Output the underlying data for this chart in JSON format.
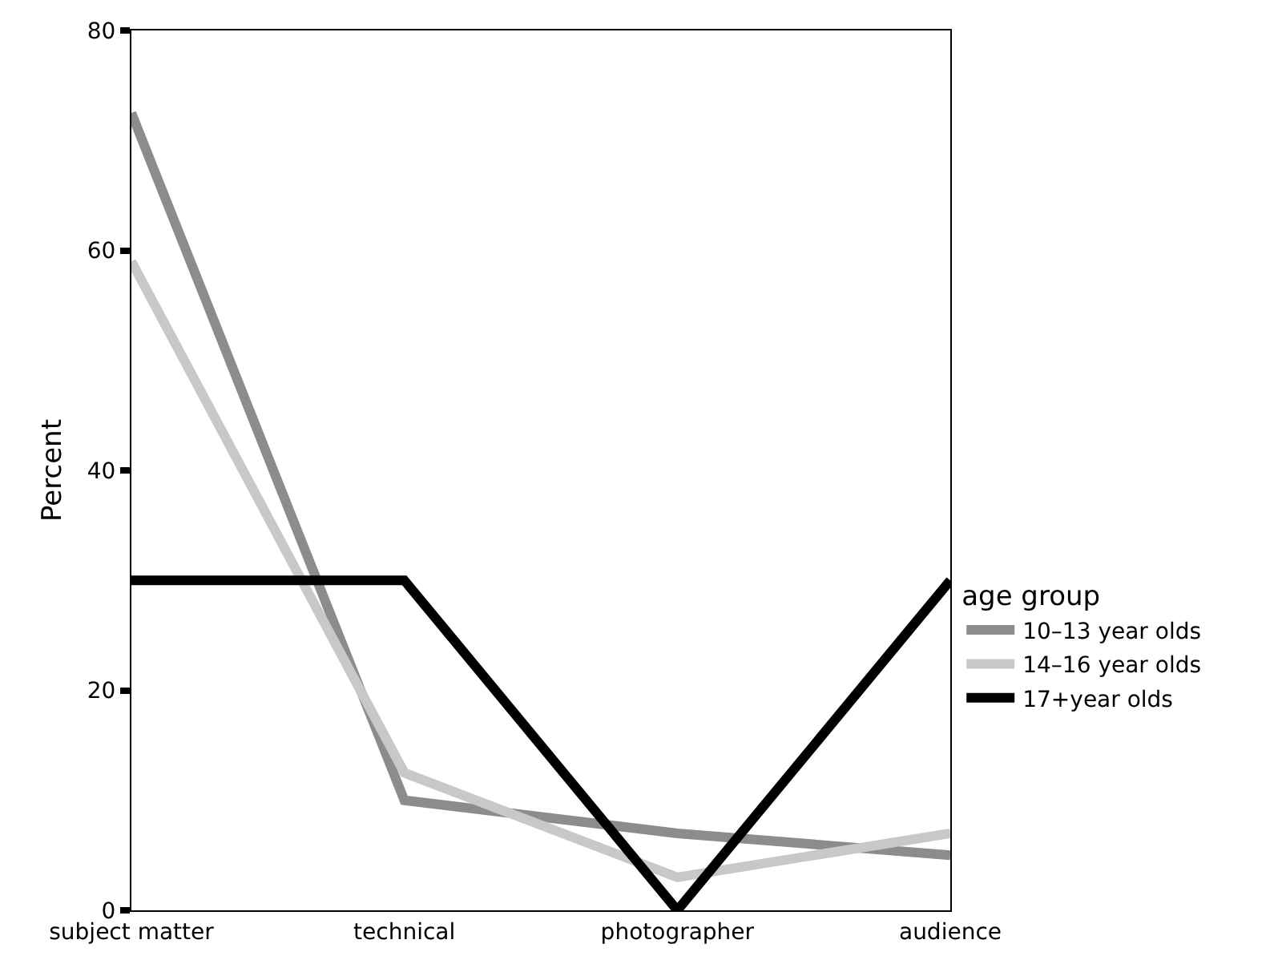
{
  "chart_data": {
    "type": "line",
    "ylabel": "Percent",
    "legend_title": "age group",
    "categories": [
      "subject matter",
      "technical",
      "photographer",
      "audience"
    ],
    "series": [
      {
        "name": "10–13 year olds",
        "color": "#8c8c8c",
        "values": [
          72.5,
          10,
          7,
          5
        ]
      },
      {
        "name": "14–16 year olds",
        "color": "#c8c8c8",
        "values": [
          59,
          12.5,
          3,
          7
        ]
      },
      {
        "name": "17+year olds",
        "color": "#000000",
        "values": [
          30,
          30,
          0,
          30
        ]
      }
    ],
    "ylim": [
      0,
      80
    ],
    "yticks": [
      0,
      20,
      40,
      60,
      80
    ],
    "grid": false,
    "legend": "right",
    "marker": "none",
    "line_style": "solid"
  }
}
